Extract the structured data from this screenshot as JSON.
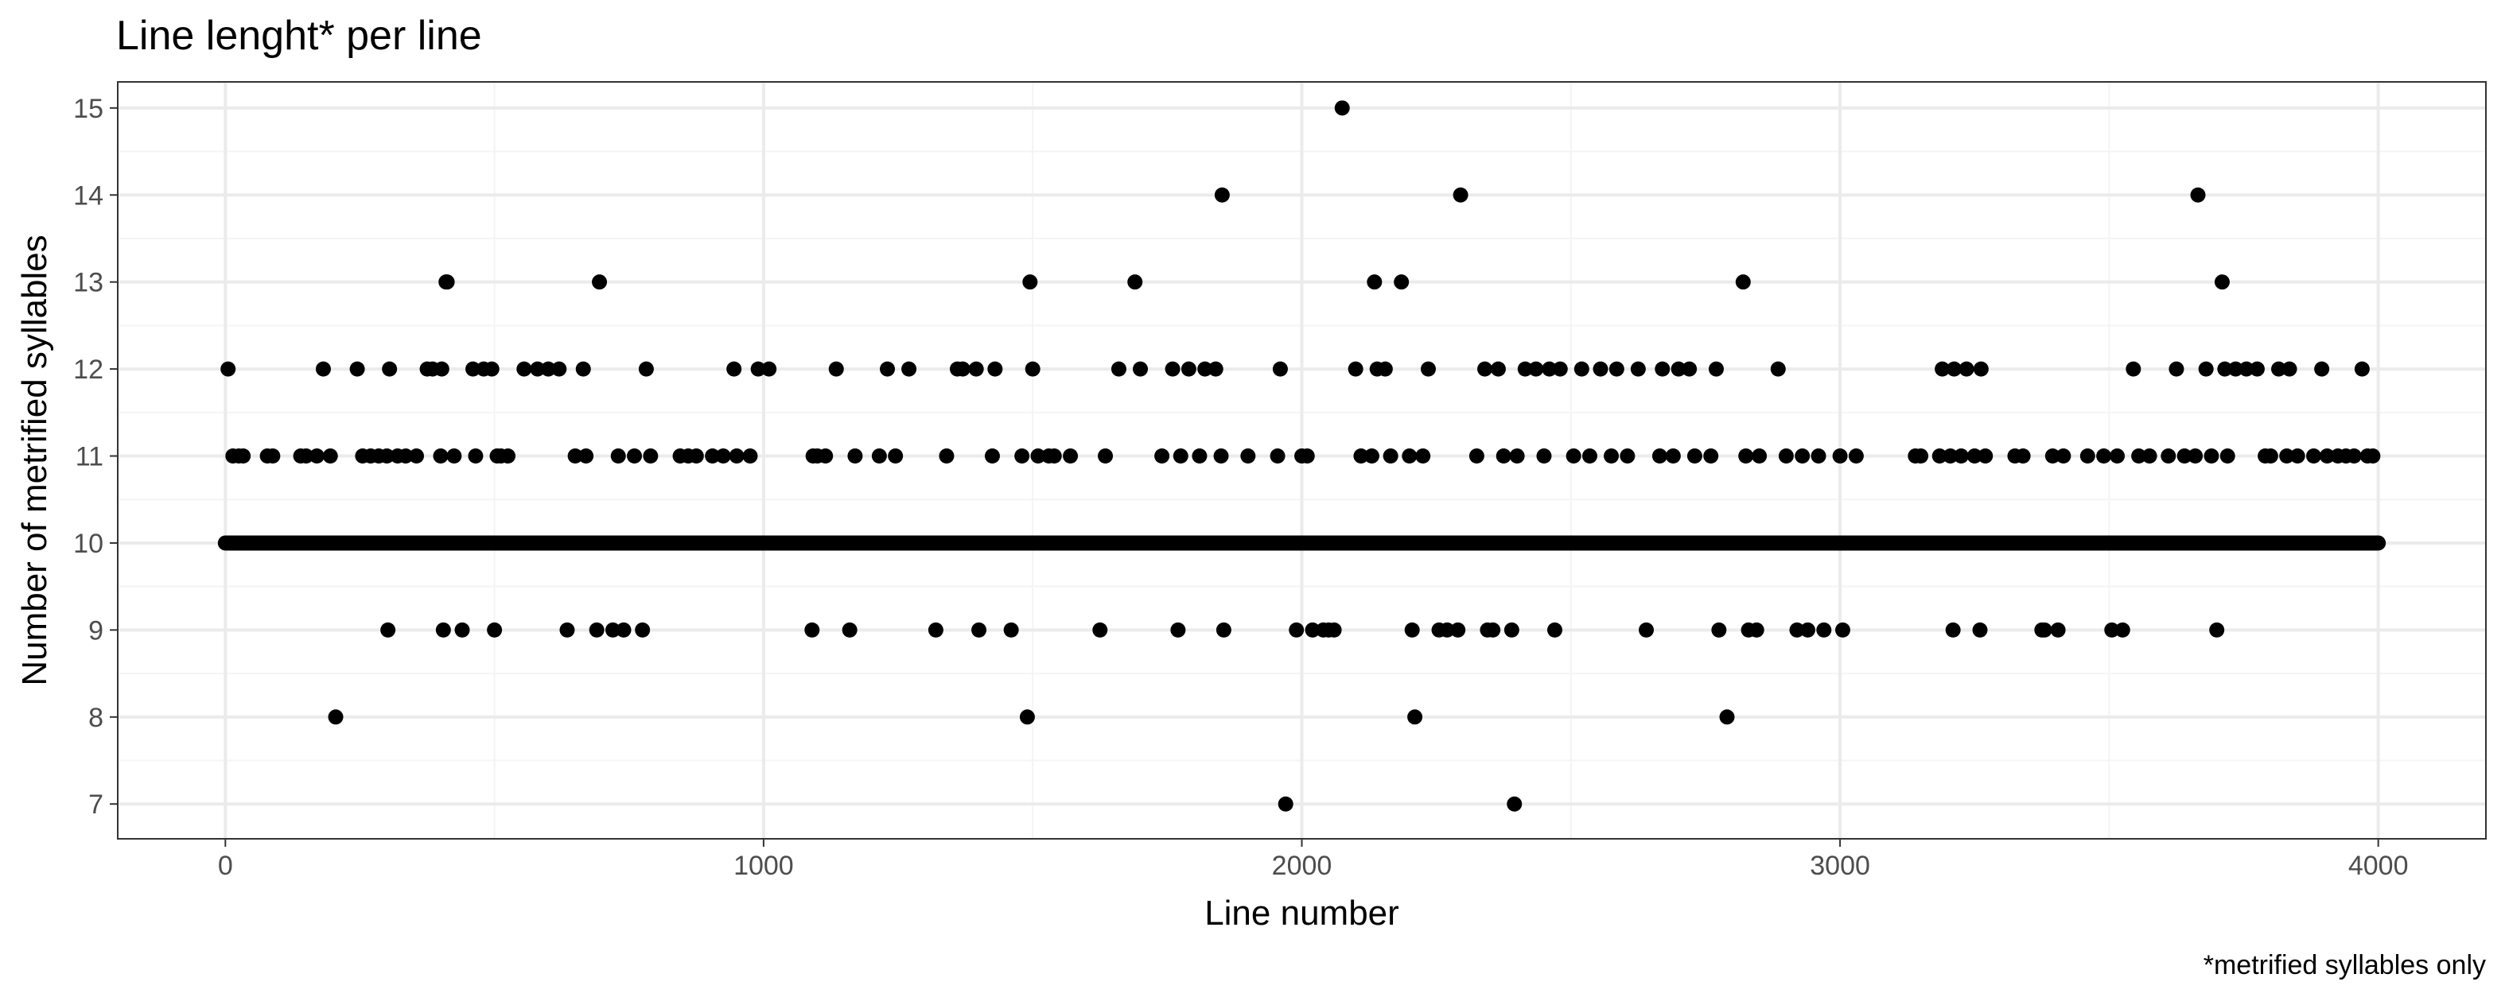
{
  "chart_data": {
    "type": "scatter",
    "title": "Line lenght* per line",
    "xlabel": "Line number",
    "ylabel": "Number of metrified syllables",
    "caption": "*metrified syllables only",
    "xlim": [
      -200,
      4200
    ],
    "ylim": [
      6.6,
      15.3
    ],
    "x_ticks": [
      0,
      1000,
      2000,
      3000,
      4000
    ],
    "y_ticks": [
      7,
      8,
      9,
      10,
      11,
      12,
      13,
      14,
      15
    ],
    "grid": true,
    "point_color": "#000000",
    "panel_border_color": "#333333",
    "grid_major_color": "#ebebeb",
    "grid_minor_color": "#f4f4f4",
    "baseline_band": {
      "y": 10,
      "x_from": 0,
      "x_to": 4000
    },
    "points": [
      [
        5,
        12
      ],
      [
        14,
        11
      ],
      [
        25,
        11
      ],
      [
        33,
        11
      ],
      [
        78,
        11
      ],
      [
        88,
        11
      ],
      [
        140,
        11
      ],
      [
        150,
        11
      ],
      [
        170,
        11
      ],
      [
        182,
        12
      ],
      [
        195,
        11
      ],
      [
        205,
        8
      ],
      [
        245,
        12
      ],
      [
        255,
        11
      ],
      [
        270,
        11
      ],
      [
        285,
        11
      ],
      [
        300,
        11
      ],
      [
        302,
        9
      ],
      [
        305,
        12
      ],
      [
        320,
        11
      ],
      [
        335,
        11
      ],
      [
        355,
        11
      ],
      [
        375,
        12
      ],
      [
        385,
        12
      ],
      [
        400,
        11
      ],
      [
        402,
        12
      ],
      [
        405,
        9
      ],
      [
        410,
        13
      ],
      [
        412,
        13
      ],
      [
        425,
        11
      ],
      [
        440,
        9
      ],
      [
        460,
        12
      ],
      [
        465,
        11
      ],
      [
        480,
        12
      ],
      [
        495,
        12
      ],
      [
        500,
        9
      ],
      [
        505,
        11
      ],
      [
        512,
        11
      ],
      [
        525,
        11
      ],
      [
        555,
        12
      ],
      [
        580,
        12
      ],
      [
        600,
        12
      ],
      [
        620,
        12
      ],
      [
        635,
        9
      ],
      [
        650,
        11
      ],
      [
        665,
        12
      ],
      [
        670,
        11
      ],
      [
        690,
        9
      ],
      [
        695,
        13
      ],
      [
        720,
        9
      ],
      [
        730,
        11
      ],
      [
        740,
        9
      ],
      [
        760,
        11
      ],
      [
        775,
        9
      ],
      [
        782,
        12
      ],
      [
        790,
        11
      ],
      [
        845,
        11
      ],
      [
        860,
        11
      ],
      [
        875,
        11
      ],
      [
        905,
        11
      ],
      [
        925,
        11
      ],
      [
        945,
        12
      ],
      [
        950,
        11
      ],
      [
        975,
        11
      ],
      [
        990,
        12
      ],
      [
        1010,
        12
      ],
      [
        1090,
        9
      ],
      [
        1092,
        11
      ],
      [
        1100,
        11
      ],
      [
        1115,
        11
      ],
      [
        1135,
        12
      ],
      [
        1160,
        9
      ],
      [
        1170,
        11
      ],
      [
        1215,
        11
      ],
      [
        1230,
        12
      ],
      [
        1245,
        11
      ],
      [
        1270,
        12
      ],
      [
        1320,
        9
      ],
      [
        1340,
        11
      ],
      [
        1360,
        12
      ],
      [
        1370,
        12
      ],
      [
        1395,
        12
      ],
      [
        1400,
        9
      ],
      [
        1425,
        11
      ],
      [
        1430,
        12
      ],
      [
        1460,
        9
      ],
      [
        1480,
        11
      ],
      [
        1490,
        8
      ],
      [
        1495,
        13
      ],
      [
        1500,
        12
      ],
      [
        1510,
        11
      ],
      [
        1530,
        11
      ],
      [
        1540,
        11
      ],
      [
        1570,
        11
      ],
      [
        1625,
        9
      ],
      [
        1635,
        11
      ],
      [
        1660,
        12
      ],
      [
        1690,
        13
      ],
      [
        1700,
        12
      ],
      [
        1740,
        11
      ],
      [
        1760,
        12
      ],
      [
        1770,
        9
      ],
      [
        1775,
        11
      ],
      [
        1790,
        12
      ],
      [
        1810,
        11
      ],
      [
        1820,
        12
      ],
      [
        1840,
        12
      ],
      [
        1850,
        11
      ],
      [
        1852,
        14
      ],
      [
        1855,
        9
      ],
      [
        1900,
        11
      ],
      [
        1955,
        11
      ],
      [
        1960,
        12
      ],
      [
        1970,
        7
      ],
      [
        1990,
        9
      ],
      [
        2000,
        11
      ],
      [
        2010,
        11
      ],
      [
        2020,
        9
      ],
      [
        2040,
        9
      ],
      [
        2050,
        9
      ],
      [
        2060,
        9
      ],
      [
        2075,
        15
      ],
      [
        2100,
        12
      ],
      [
        2110,
        11
      ],
      [
        2130,
        11
      ],
      [
        2135,
        13
      ],
      [
        2140,
        12
      ],
      [
        2155,
        12
      ],
      [
        2165,
        11
      ],
      [
        2185,
        13
      ],
      [
        2200,
        11
      ],
      [
        2205,
        9
      ],
      [
        2210,
        8
      ],
      [
        2225,
        11
      ],
      [
        2235,
        12
      ],
      [
        2255,
        9
      ],
      [
        2270,
        9
      ],
      [
        2290,
        9
      ],
      [
        2295,
        14
      ],
      [
        2325,
        11
      ],
      [
        2340,
        12
      ],
      [
        2345,
        9
      ],
      [
        2355,
        9
      ],
      [
        2365,
        12
      ],
      [
        2375,
        11
      ],
      [
        2390,
        9
      ],
      [
        2395,
        7
      ],
      [
        2400,
        11
      ],
      [
        2415,
        12
      ],
      [
        2435,
        12
      ],
      [
        2450,
        11
      ],
      [
        2460,
        12
      ],
      [
        2470,
        9
      ],
      [
        2480,
        12
      ],
      [
        2505,
        11
      ],
      [
        2520,
        12
      ],
      [
        2535,
        11
      ],
      [
        2555,
        12
      ],
      [
        2575,
        11
      ],
      [
        2585,
        12
      ],
      [
        2605,
        11
      ],
      [
        2625,
        12
      ],
      [
        2640,
        9
      ],
      [
        2665,
        11
      ],
      [
        2670,
        12
      ],
      [
        2690,
        11
      ],
      [
        2700,
        12
      ],
      [
        2720,
        12
      ],
      [
        2730,
        11
      ],
      [
        2760,
        11
      ],
      [
        2770,
        12
      ],
      [
        2775,
        9
      ],
      [
        2790,
        8
      ],
      [
        2820,
        13
      ],
      [
        2825,
        11
      ],
      [
        2830,
        9
      ],
      [
        2845,
        9
      ],
      [
        2850,
        11
      ],
      [
        2885,
        12
      ],
      [
        2900,
        11
      ],
      [
        2920,
        9
      ],
      [
        2930,
        11
      ],
      [
        2940,
        9
      ],
      [
        2960,
        11
      ],
      [
        2970,
        9
      ],
      [
        3000,
        11
      ],
      [
        3005,
        9
      ],
      [
        3030,
        11
      ],
      [
        3140,
        11
      ],
      [
        3150,
        11
      ],
      [
        3185,
        11
      ],
      [
        3190,
        12
      ],
      [
        3205,
        11
      ],
      [
        3210,
        9
      ],
      [
        3212,
        12
      ],
      [
        3225,
        11
      ],
      [
        3235,
        12
      ],
      [
        3250,
        11
      ],
      [
        3260,
        9
      ],
      [
        3262,
        12
      ],
      [
        3270,
        11
      ],
      [
        3325,
        11
      ],
      [
        3340,
        11
      ],
      [
        3375,
        9
      ],
      [
        3380,
        9
      ],
      [
        3395,
        11
      ],
      [
        3405,
        9
      ],
      [
        3415,
        11
      ],
      [
        3460,
        11
      ],
      [
        3490,
        11
      ],
      [
        3505,
        9
      ],
      [
        3515,
        11
      ],
      [
        3525,
        9
      ],
      [
        3545,
        12
      ],
      [
        3555,
        11
      ],
      [
        3575,
        11
      ],
      [
        3610,
        11
      ],
      [
        3625,
        12
      ],
      [
        3640,
        11
      ],
      [
        3660,
        11
      ],
      [
        3665,
        14
      ],
      [
        3680,
        12
      ],
      [
        3690,
        11
      ],
      [
        3700,
        9
      ],
      [
        3710,
        13
      ],
      [
        3715,
        12
      ],
      [
        3720,
        11
      ],
      [
        3735,
        12
      ],
      [
        3755,
        12
      ],
      [
        3775,
        12
      ],
      [
        3790,
        11
      ],
      [
        3800,
        11
      ],
      [
        3815,
        12
      ],
      [
        3830,
        11
      ],
      [
        3835,
        12
      ],
      [
        3850,
        11
      ],
      [
        3880,
        11
      ],
      [
        3895,
        12
      ],
      [
        3905,
        11
      ],
      [
        3925,
        11
      ],
      [
        3940,
        11
      ],
      [
        3955,
        11
      ],
      [
        3970,
        12
      ],
      [
        3980,
        11
      ],
      [
        3990,
        11
      ]
    ]
  }
}
